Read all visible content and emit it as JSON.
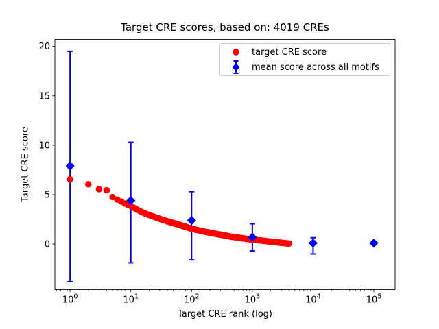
{
  "figure": {
    "background": "#ffffff"
  },
  "chart_data": {
    "type": "scatter",
    "title": "Target CRE scores, based on: 4019 CREs",
    "xlabel": "Target CRE rank (log)",
    "ylabel": "Target CRE score",
    "x_scale": "log10",
    "xlim_log10": [
      -0.25,
      5.35
    ],
    "ylim": [
      -4.6,
      20.7
    ],
    "x_tick_exponents": [
      0,
      1,
      2,
      3,
      4,
      5
    ],
    "x_ticks": [
      1,
      10,
      100,
      1000,
      10000,
      100000
    ],
    "y_ticks": [
      0,
      5,
      10,
      15,
      20
    ],
    "grid": false,
    "legend_position": "upper right",
    "series": [
      {
        "name": "target CRE score",
        "marker": "circle",
        "color": "#ff0000",
        "n_points": 4019,
        "anchor_ranks": [
          1,
          2,
          3,
          4,
          5,
          6,
          7,
          8,
          10,
          13,
          17,
          22,
          30,
          40,
          55,
          75,
          100,
          140,
          200,
          300,
          450,
          700,
          1000,
          1500,
          2200,
          3000,
          4019
        ],
        "anchor_scores": [
          6.55,
          6.05,
          5.55,
          5.45,
          4.75,
          4.5,
          4.3,
          4.1,
          3.85,
          3.45,
          3.1,
          2.85,
          2.55,
          2.3,
          2.05,
          1.8,
          1.55,
          1.35,
          1.15,
          0.95,
          0.75,
          0.58,
          0.45,
          0.34,
          0.22,
          0.13,
          0.05
        ]
      },
      {
        "name": "mean score across all motifs",
        "marker": "diamond",
        "color": "#0000ff",
        "x": [
          1,
          10,
          100,
          1000,
          10000,
          100000
        ],
        "y": [
          7.9,
          4.4,
          2.4,
          0.7,
          0.1,
          0.1
        ],
        "err_top": [
          19.5,
          10.3,
          5.3,
          2.05,
          0.65,
          0.1
        ],
        "err_bot": [
          -3.8,
          -1.9,
          -1.6,
          -0.7,
          -1.0,
          0.1
        ]
      }
    ]
  }
}
